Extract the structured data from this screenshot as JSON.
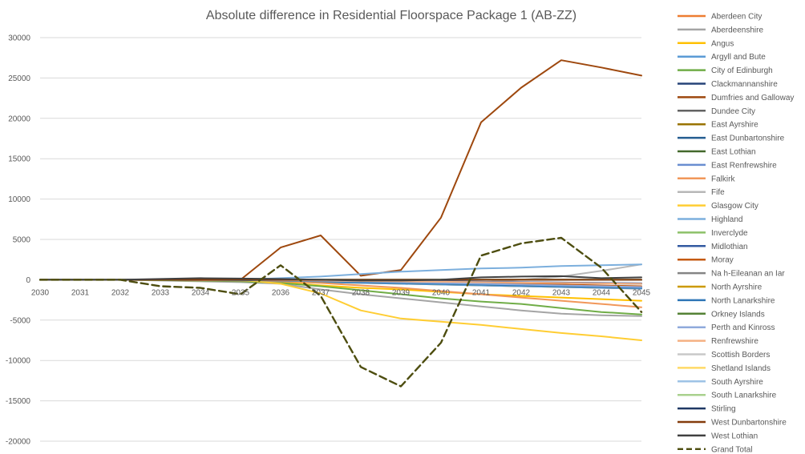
{
  "chart_data": {
    "type": "line",
    "title": "Absolute difference in Residential Floorspace Package 1 (AB-ZZ)",
    "xlabel": "",
    "ylabel": "",
    "categories": [
      "2030",
      "2031",
      "2032",
      "2033",
      "2034",
      "2035",
      "2036",
      "2037",
      "2038",
      "2039",
      "2040",
      "2041",
      "2042",
      "2043",
      "2044",
      "2045"
    ],
    "y_ticks": [
      "30000",
      "25000",
      "20000",
      "15000",
      "10000",
      "5000",
      "0",
      "-5000",
      "-10000",
      "-15000",
      "-20000"
    ],
    "ylim": [
      -20000,
      30000
    ],
    "grid": true,
    "legend_position": "right",
    "series": [
      {
        "name": "Aberdeen City",
        "color": "#ED7D31",
        "dash": false,
        "values": [
          0,
          0,
          0,
          -50,
          -100,
          -150,
          -200,
          -300,
          -400,
          -500,
          -600,
          -700,
          -800,
          -900,
          -1000,
          -1100
        ]
      },
      {
        "name": "Aberdeenshire",
        "color": "#A5A5A5",
        "dash": false,
        "values": [
          0,
          0,
          0,
          -100,
          -200,
          -300,
          -500,
          -1200,
          -1800,
          -2300,
          -2800,
          -3300,
          -3800,
          -4200,
          -4400,
          -4500
        ]
      },
      {
        "name": "Angus",
        "color": "#FFC000",
        "dash": false,
        "values": [
          0,
          0,
          0,
          -50,
          -100,
          -150,
          -300,
          -700,
          -1000,
          -1200,
          -1500,
          -1800,
          -2000,
          -2200,
          -2400,
          -2600
        ]
      },
      {
        "name": "Argyll and Bute",
        "color": "#5B9BD5",
        "dash": false,
        "values": [
          0,
          0,
          0,
          0,
          -50,
          -100,
          -200,
          -300,
          -400,
          -500,
          -600,
          -700,
          -800,
          -900,
          -1000,
          -1100
        ]
      },
      {
        "name": "City of Edinburgh",
        "color": "#70AD47",
        "dash": false,
        "values": [
          0,
          0,
          0,
          -50,
          -100,
          -200,
          -400,
          -800,
          -1300,
          -1800,
          -2300,
          -2700,
          -3000,
          -3500,
          -4000,
          -4300
        ]
      },
      {
        "name": "Clackmannanshire",
        "color": "#264478",
        "dash": false,
        "values": [
          0,
          0,
          0,
          0,
          0,
          -20,
          -50,
          -100,
          -150,
          -200,
          -250,
          -300,
          -350,
          -400,
          -450,
          -500
        ]
      },
      {
        "name": "Dumfries and Galloway",
        "color": "#9E480E",
        "dash": false,
        "values": [
          0,
          0,
          0,
          0,
          0,
          0,
          4000,
          5500,
          500,
          1200,
          7700,
          19500,
          23800,
          27200,
          26300,
          25300
        ]
      },
      {
        "name": "Dundee City",
        "color": "#636363",
        "dash": false,
        "values": [
          0,
          0,
          0,
          0,
          0,
          0,
          -50,
          -100,
          -150,
          -200,
          -250,
          -300,
          -350,
          -400,
          -450,
          -500
        ]
      },
      {
        "name": "East Ayrshire",
        "color": "#997300",
        "dash": false,
        "values": [
          0,
          0,
          0,
          0,
          0,
          0,
          0,
          0,
          0,
          0,
          0,
          0,
          0,
          0,
          0,
          0
        ]
      },
      {
        "name": "East Dunbartonshire",
        "color": "#255E91",
        "dash": false,
        "values": [
          0,
          0,
          0,
          0,
          -50,
          -100,
          -150,
          -200,
          -300,
          -400,
          -500,
          -600,
          -700,
          -800,
          -900,
          -1000
        ]
      },
      {
        "name": "East Lothian",
        "color": "#43682B",
        "dash": false,
        "values": [
          0,
          0,
          0,
          0,
          0,
          0,
          0,
          -100,
          -200,
          -300,
          -400,
          -500,
          -600,
          -700,
          -800,
          -900
        ]
      },
      {
        "name": "East Renfrewshire",
        "color": "#698ED0",
        "dash": false,
        "values": [
          0,
          0,
          0,
          0,
          0,
          0,
          0,
          -50,
          -100,
          -150,
          -200,
          -250,
          -300,
          -350,
          -400,
          -450
        ]
      },
      {
        "name": "Falkirk",
        "color": "#F1975A",
        "dash": false,
        "values": [
          0,
          0,
          0,
          0,
          -50,
          -100,
          -200,
          -400,
          -700,
          -1000,
          -1400,
          -1800,
          -2200,
          -2600,
          -3000,
          -3400
        ]
      },
      {
        "name": "Fife",
        "color": "#B7B7B7",
        "dash": false,
        "values": [
          0,
          0,
          0,
          0,
          0,
          0,
          -100,
          -200,
          -300,
          -400,
          -500,
          -300,
          0,
          400,
          1100,
          1900
        ]
      },
      {
        "name": "Glasgow City",
        "color": "#FFCD33",
        "dash": false,
        "values": [
          0,
          0,
          0,
          0,
          0,
          0,
          -500,
          -1700,
          -3800,
          -4800,
          -5200,
          -5600,
          -6100,
          -6600,
          -7000,
          -7500
        ]
      },
      {
        "name": "Highland",
        "color": "#7CAFDD",
        "dash": false,
        "values": [
          0,
          0,
          0,
          0,
          0,
          0,
          200,
          400,
          700,
          1000,
          1200,
          1400,
          1500,
          1700,
          1800,
          1900
        ]
      },
      {
        "name": "Inverclyde",
        "color": "#8CC168",
        "dash": false,
        "values": [
          0,
          0,
          0,
          0,
          0,
          -50,
          -100,
          -200,
          -300,
          -400,
          -500,
          -600,
          -700,
          -800,
          -900,
          -1000
        ]
      },
      {
        "name": "Midlothian",
        "color": "#335AA1",
        "dash": false,
        "values": [
          0,
          0,
          0,
          0,
          0,
          0,
          0,
          -50,
          -100,
          -150,
          -200,
          -250,
          -300,
          -350,
          -400,
          -450
        ]
      },
      {
        "name": "Moray",
        "color": "#C55A11",
        "dash": false,
        "values": [
          0,
          0,
          0,
          0,
          0,
          0,
          0,
          0,
          -100,
          -200,
          -300,
          -400,
          -500,
          -600,
          -700,
          -800
        ]
      },
      {
        "name": "Na h-Eileanan an Iar",
        "color": "#848484",
        "dash": false,
        "values": [
          0,
          0,
          0,
          0,
          0,
          0,
          0,
          0,
          0,
          0,
          0,
          0,
          0,
          0,
          0,
          0
        ]
      },
      {
        "name": "North Ayrshire",
        "color": "#CC9A00",
        "dash": false,
        "values": [
          0,
          0,
          0,
          0,
          0,
          0,
          0,
          0,
          0,
          0,
          0,
          0,
          0,
          0,
          0,
          0
        ]
      },
      {
        "name": "North Lanarkshire",
        "color": "#2E75B6",
        "dash": false,
        "values": [
          0,
          0,
          0,
          0,
          0,
          -50,
          -100,
          -200,
          -300,
          -400,
          -500,
          -600,
          -700,
          -800,
          -900,
          -1000
        ]
      },
      {
        "name": "Orkney Islands",
        "color": "#548235",
        "dash": false,
        "values": [
          0,
          0,
          0,
          0,
          0,
          0,
          0,
          0,
          0,
          0,
          0,
          0,
          0,
          0,
          0,
          0
        ]
      },
      {
        "name": "Perth and Kinross",
        "color": "#8FAADC",
        "dash": false,
        "values": [
          0,
          0,
          0,
          0,
          0,
          0,
          -50,
          -100,
          -200,
          -300,
          -400,
          -500,
          -600,
          -700,
          -800,
          -900
        ]
      },
      {
        "name": "Renfrewshire",
        "color": "#F4B183",
        "dash": false,
        "values": [
          0,
          0,
          0,
          0,
          0,
          0,
          -50,
          -100,
          -150,
          -200,
          -250,
          -300,
          -350,
          -400,
          -450,
          -500
        ]
      },
      {
        "name": "Scottish Borders",
        "color": "#C9C9C9",
        "dash": false,
        "values": [
          0,
          0,
          0,
          0,
          0,
          0,
          0,
          0,
          0,
          0,
          0,
          0,
          0,
          0,
          0,
          0
        ]
      },
      {
        "name": "Shetland Islands",
        "color": "#FFD966",
        "dash": false,
        "values": [
          0,
          0,
          0,
          0,
          0,
          0,
          0,
          0,
          0,
          0,
          0,
          0,
          0,
          0,
          0,
          0
        ]
      },
      {
        "name": "South Ayrshire",
        "color": "#9DC3E6",
        "dash": false,
        "values": [
          0,
          0,
          0,
          0,
          0,
          0,
          0,
          0,
          0,
          0,
          0,
          0,
          0,
          0,
          0,
          0
        ]
      },
      {
        "name": "South Lanarkshire",
        "color": "#A9D18E",
        "dash": false,
        "values": [
          0,
          0,
          0,
          0,
          0,
          0,
          0,
          0,
          0,
          0,
          0,
          0,
          0,
          0,
          0,
          0
        ]
      },
      {
        "name": "Stirling",
        "color": "#1F3864",
        "dash": false,
        "values": [
          0,
          0,
          0,
          0,
          0,
          0,
          0,
          0,
          0,
          0,
          0,
          0,
          0,
          0,
          0,
          0
        ]
      },
      {
        "name": "West Dunbartonshire",
        "color": "#843C0C",
        "dash": false,
        "values": [
          0,
          0,
          0,
          0,
          0,
          0,
          0,
          0,
          0,
          0,
          0,
          0,
          0,
          0,
          0,
          0
        ]
      },
      {
        "name": "West Lothian",
        "color": "#404040",
        "dash": false,
        "values": [
          0,
          0,
          0,
          100,
          200,
          150,
          100,
          0,
          -100,
          -100,
          0,
          300,
          400,
          450,
          200,
          300
        ]
      },
      {
        "name": "Grand Total",
        "color": "#4D4D0F",
        "dash": true,
        "values": [
          0,
          0,
          0,
          -800,
          -1000,
          -1800,
          1800,
          -2000,
          -10800,
          -13200,
          -7800,
          3000,
          4500,
          5200,
          1500,
          -4000
        ]
      }
    ]
  }
}
